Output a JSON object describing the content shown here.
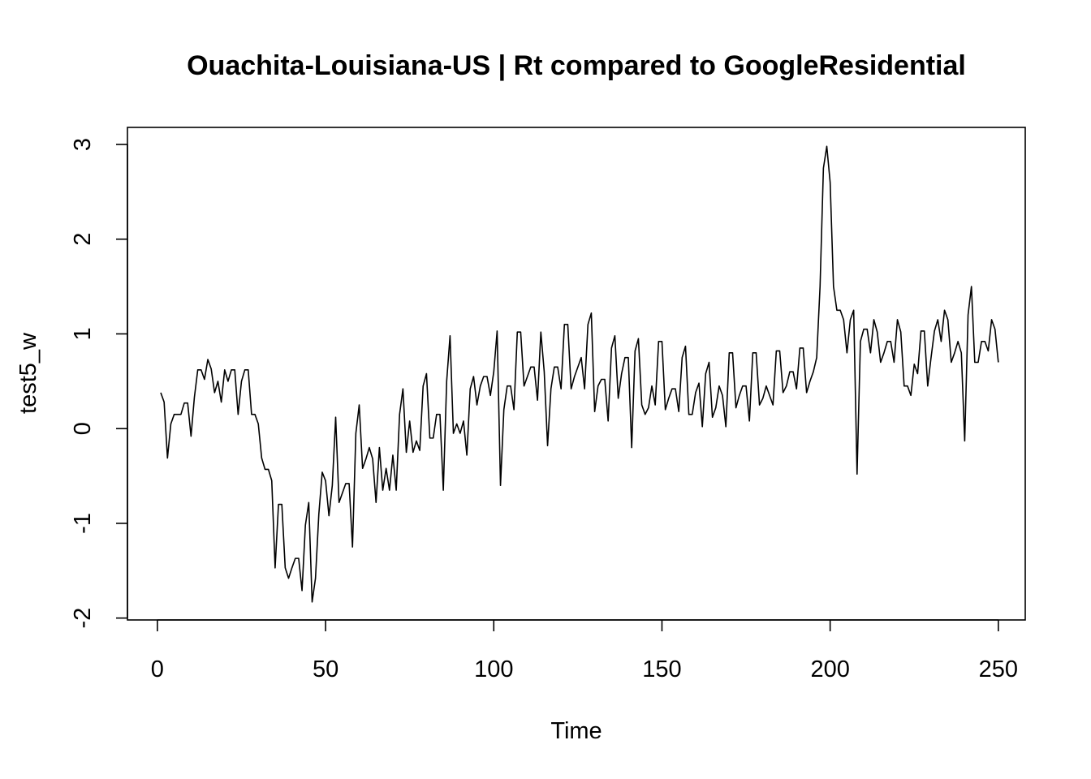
{
  "chart_data": {
    "type": "line",
    "title": "Ouachita-Louisiana-US | Rt compared to GoogleResidential",
    "xlabel": "Time",
    "ylabel": "test5_w",
    "xlim": [
      -8.9,
      258
    ],
    "ylim": [
      -2.02,
      3.18
    ],
    "x_ticks": [
      0,
      50,
      100,
      150,
      200,
      250
    ],
    "y_ticks": [
      -2,
      -1,
      0,
      1,
      2,
      3
    ],
    "x_tick_labels": [
      "0",
      "50",
      "100",
      "150",
      "200",
      "250"
    ],
    "y_tick_labels": [
      "-2",
      "-1",
      "0",
      "1",
      "2",
      "3"
    ],
    "grid": false,
    "line_color": "#000000",
    "series": [
      {
        "x_start": 1,
        "x_step": 1,
        "values": [
          0.38,
          0.28,
          -0.31,
          0.05,
          0.15,
          0.15,
          0.15,
          0.27,
          0.27,
          -0.08,
          0.33,
          0.62,
          0.62,
          0.52,
          0.73,
          0.63,
          0.38,
          0.5,
          0.28,
          0.62,
          0.5,
          0.62,
          0.62,
          0.15,
          0.5,
          0.62,
          0.62,
          0.15,
          0.15,
          0.05,
          -0.31,
          -0.43,
          -0.43,
          -0.55,
          -1.47,
          -0.8,
          -0.8,
          -1.47,
          -1.58,
          -1.47,
          -1.37,
          -1.37,
          -1.71,
          -1.02,
          -0.78,
          -1.83,
          -1.58,
          -0.9,
          -0.46,
          -0.55,
          -0.92,
          -0.6,
          0.12,
          -0.78,
          -0.68,
          -0.58,
          -0.58,
          -1.25,
          -0.05,
          0.25,
          -0.42,
          -0.32,
          -0.2,
          -0.32,
          -0.78,
          -0.2,
          -0.65,
          -0.42,
          -0.65,
          -0.28,
          -0.65,
          0.15,
          0.42,
          -0.25,
          0.08,
          -0.25,
          -0.13,
          -0.23,
          0.45,
          0.58,
          -0.1,
          -0.1,
          0.15,
          0.15,
          -0.65,
          0.5,
          0.98,
          -0.05,
          0.05,
          -0.05,
          0.08,
          -0.28,
          0.42,
          0.55,
          0.25,
          0.45,
          0.55,
          0.55,
          0.35,
          0.6,
          1.03,
          -0.6,
          0.2,
          0.45,
          0.45,
          0.2,
          1.02,
          1.02,
          0.45,
          0.55,
          0.65,
          0.65,
          0.3,
          1.02,
          0.6,
          -0.18,
          0.42,
          0.65,
          0.65,
          0.42,
          1.1,
          1.1,
          0.42,
          0.55,
          0.65,
          0.75,
          0.42,
          1.1,
          1.22,
          0.18,
          0.45,
          0.52,
          0.52,
          0.08,
          0.85,
          0.98,
          0.32,
          0.58,
          0.75,
          0.75,
          -0.2,
          0.82,
          0.95,
          0.25,
          0.15,
          0.22,
          0.45,
          0.25,
          0.92,
          0.92,
          0.2,
          0.32,
          0.42,
          0.42,
          0.18,
          0.75,
          0.87,
          0.15,
          0.15,
          0.38,
          0.48,
          0.02,
          0.58,
          0.7,
          0.12,
          0.22,
          0.45,
          0.35,
          0.02,
          0.8,
          0.8,
          0.22,
          0.35,
          0.45,
          0.45,
          0.08,
          0.8,
          0.8,
          0.25,
          0.32,
          0.45,
          0.35,
          0.25,
          0.82,
          0.82,
          0.38,
          0.45,
          0.6,
          0.6,
          0.42,
          0.85,
          0.85,
          0.38,
          0.5,
          0.6,
          0.75,
          1.5,
          2.75,
          2.98,
          2.6,
          1.5,
          1.25,
          1.25,
          1.15,
          0.8,
          1.15,
          1.25,
          -0.48,
          0.92,
          1.05,
          1.05,
          0.8,
          1.15,
          1.02,
          0.7,
          0.8,
          0.92,
          0.92,
          0.7,
          1.15,
          1.02,
          0.45,
          0.45,
          0.35,
          0.68,
          0.58,
          1.03,
          1.03,
          0.45,
          0.75,
          1.03,
          1.15,
          0.92,
          1.25,
          1.15,
          0.7,
          0.8,
          0.92,
          0.8,
          -0.13,
          1.2,
          1.5,
          0.7,
          0.7,
          0.92,
          0.92,
          0.82,
          1.15,
          1.05,
          0.7
        ]
      }
    ]
  }
}
